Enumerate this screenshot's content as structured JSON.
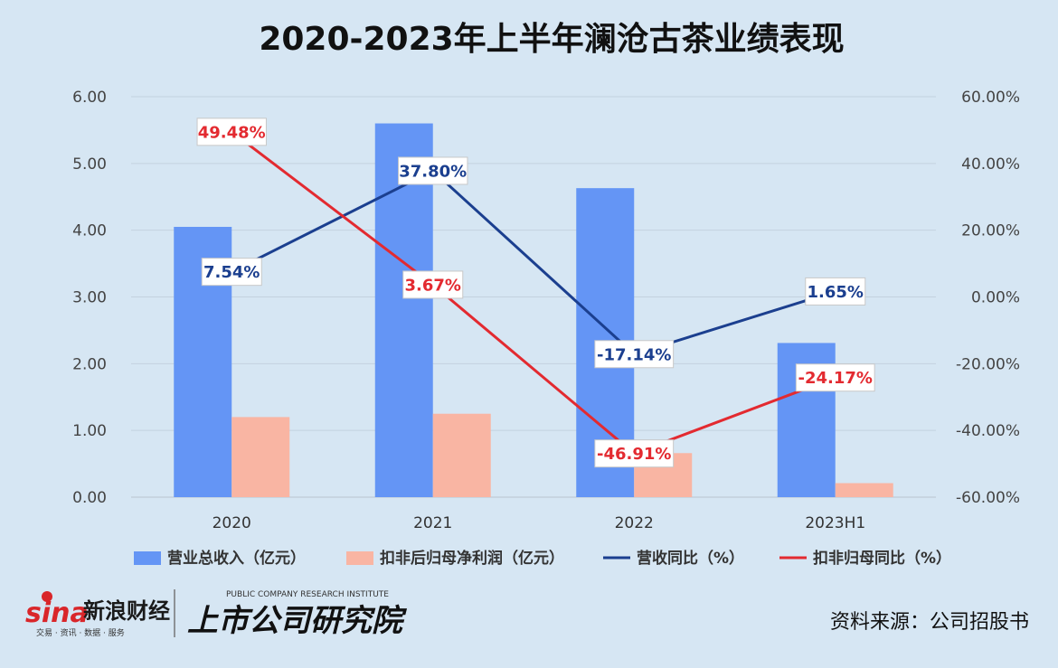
{
  "chart_data": {
    "type": "bar+line",
    "title": "2020-2023年上半年澜沧古茶业绩表现",
    "categories": [
      "2020",
      "2021",
      "2022",
      "2023H1"
    ],
    "left_axis": {
      "ylim": [
        0,
        6
      ],
      "ticks": [
        "0.00",
        "1.00",
        "2.00",
        "3.00",
        "4.00",
        "5.00",
        "6.00"
      ]
    },
    "right_axis": {
      "ylim": [
        -60,
        60
      ],
      "ticks": [
        "-60.00%",
        "-40.00%",
        "-20.00%",
        "0.00%",
        "20.00%",
        "40.00%",
        "60.00%"
      ]
    },
    "series": [
      {
        "name": "营业总收入（亿元）",
        "type": "bar",
        "axis": "left",
        "color": "#6495f5",
        "values": [
          4.05,
          5.6,
          4.63,
          2.31
        ]
      },
      {
        "name": "扣非后归母净利润（亿元）",
        "type": "bar",
        "axis": "left",
        "color": "#f9b5a3",
        "values": [
          1.2,
          1.25,
          0.66,
          0.21
        ]
      },
      {
        "name": "营收同比（%）",
        "type": "line",
        "axis": "right",
        "color": "#1b3f8f",
        "values": [
          7.54,
          37.8,
          -17.14,
          1.65
        ],
        "labels": [
          "7.54%",
          "37.80%",
          "-17.14%",
          "1.65%"
        ]
      },
      {
        "name": "扣非归母同比（%）",
        "type": "line",
        "axis": "right",
        "color": "#e32a30",
        "values": [
          49.48,
          3.67,
          -46.91,
          -24.17
        ],
        "labels": [
          "49.48%",
          "3.67%",
          "-46.91%",
          "-24.17%"
        ]
      }
    ],
    "grid": true,
    "legend": "bottom"
  },
  "footer": {
    "sina_logo": "sina",
    "sina_name": "新浪财经",
    "sina_tagline": "交易 · 资讯 · 数据 · 服务",
    "research_en": "PUBLIC COMPANY RESEARCH INSTITUTE",
    "research_cn": "上市公司研究院",
    "source": "资料来源：公司招股书"
  }
}
